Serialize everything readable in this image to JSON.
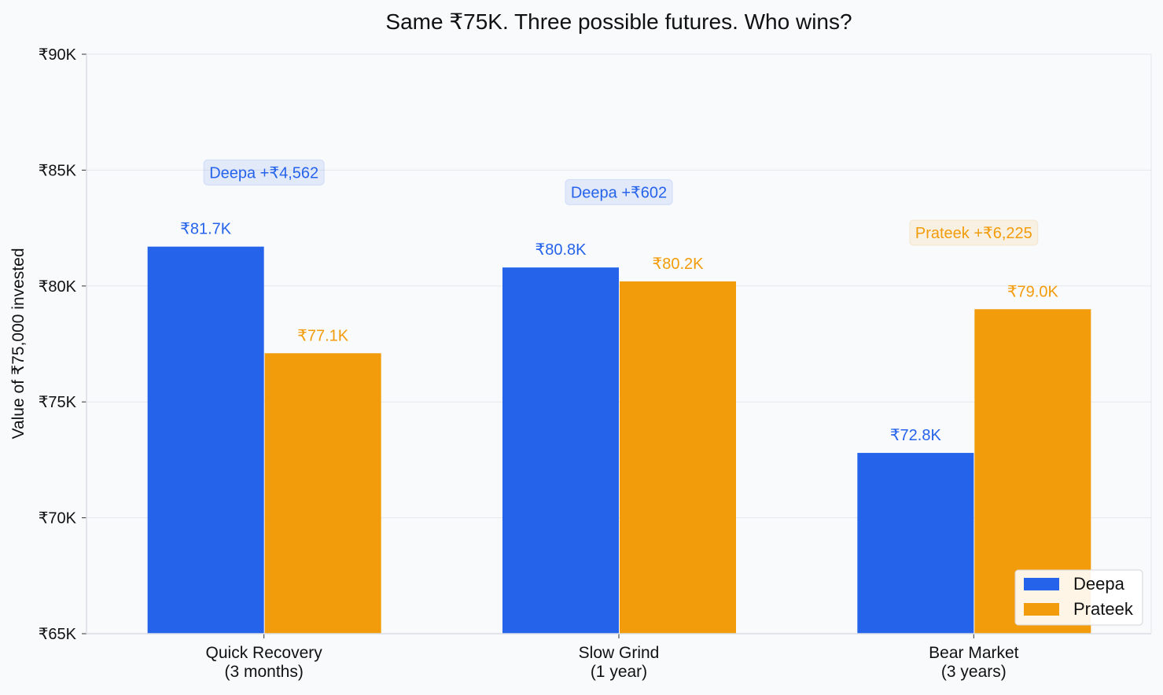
{
  "chart_data": {
    "type": "bar",
    "title": "Same ₹75K. Three possible futures. Who wins?",
    "xlabel": "",
    "ylabel": "Value of ₹75,000 invested",
    "categories": [
      [
        "Quick Recovery",
        "(3 months)"
      ],
      [
        "Slow Grind",
        "(1 year)"
      ],
      [
        "Bear Market",
        "(3 years)"
      ]
    ],
    "series": [
      {
        "name": "Deepa",
        "color": "#2563eb",
        "values": [
          81700,
          80800,
          72800
        ],
        "labels": [
          "₹81.7K",
          "₹80.8K",
          "₹72.8K"
        ]
      },
      {
        "name": "Prateek",
        "color": "#f39c0b",
        "values": [
          77100,
          80200,
          79000
        ],
        "labels": [
          "₹77.1K",
          "₹80.2K",
          "₹79.0K"
        ]
      }
    ],
    "ylim": [
      65000,
      90000
    ],
    "yticks": [
      65000,
      70000,
      75000,
      80000,
      85000,
      90000
    ],
    "ytick_labels": [
      "₹65K",
      "₹70K",
      "₹75K",
      "₹80K",
      "₹85K",
      "₹90K"
    ],
    "annotations": [
      {
        "category_index": 0,
        "winner": "Deepa",
        "text": "Deepa +₹4,562",
        "y": 84900
      },
      {
        "category_index": 1,
        "winner": "Deepa",
        "text": "Deepa +₹602",
        "y": 84050
      },
      {
        "category_index": 2,
        "winner": "Prateek",
        "text": "Prateek +₹6,225",
        "y": 82300
      }
    ],
    "legend": {
      "placement": "bottom-right",
      "entries": [
        "Deepa",
        "Prateek"
      ]
    },
    "grid": true
  }
}
